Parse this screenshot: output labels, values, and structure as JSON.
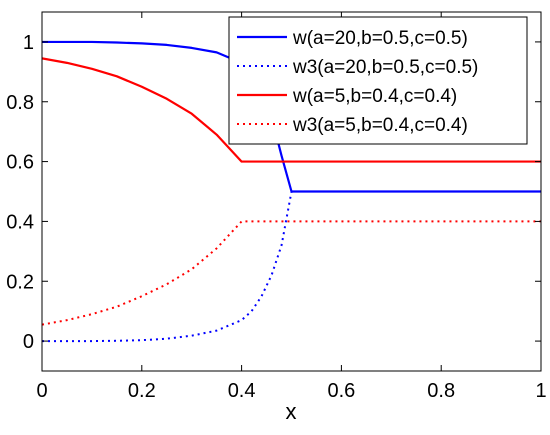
{
  "chart_data": {
    "type": "line",
    "title": "",
    "xlabel": "x",
    "ylabel": "",
    "xlim": [
      0,
      1
    ],
    "ylim": [
      -0.1,
      1.1
    ],
    "x_ticks": [
      0,
      0.2,
      0.4,
      0.6,
      0.8,
      1
    ],
    "y_ticks": [
      0,
      0.2,
      0.4,
      0.6,
      0.8,
      1
    ],
    "x_tick_labels": [
      "0",
      "0.2",
      "0.4",
      "0.6",
      "0.8",
      "1"
    ],
    "y_tick_labels": [
      "0",
      "0.2",
      "0.4",
      "0.6",
      "0.8",
      "1"
    ],
    "grid": false,
    "legend_position": "top-right",
    "series": [
      {
        "name": "w(a=20,b=0.5,c=0.5)",
        "color": "#0000ff",
        "style": "solid",
        "x": [
          0,
          0.05,
          0.1,
          0.15,
          0.2,
          0.25,
          0.3,
          0.35,
          0.4,
          0.42,
          0.44,
          0.46,
          0.48,
          0.5,
          0.6,
          0.7,
          0.8,
          0.9,
          1.0
        ],
        "y": [
          1.0,
          1.0,
          1.0,
          0.998,
          0.995,
          0.99,
          0.98,
          0.965,
          0.93,
          0.9,
          0.85,
          0.75,
          0.62,
          0.5,
          0.5,
          0.5,
          0.5,
          0.5,
          0.5
        ]
      },
      {
        "name": "w3(a=20,b=0.5,c=0.5)",
        "color": "#0000ff",
        "style": "dotted",
        "x": [
          0,
          0.05,
          0.1,
          0.15,
          0.2,
          0.25,
          0.3,
          0.35,
          0.4,
          0.42,
          0.44,
          0.46,
          0.48,
          0.5,
          0.6,
          0.7,
          0.8,
          0.9,
          1.0
        ],
        "y": [
          0.0,
          0.0,
          0.0,
          0.001,
          0.003,
          0.008,
          0.018,
          0.035,
          0.07,
          0.1,
          0.15,
          0.22,
          0.32,
          0.5,
          0.5,
          0.5,
          0.5,
          0.5,
          0.5
        ]
      },
      {
        "name": "w(a=5,b=0.4,c=0.4)",
        "color": "#ff0000",
        "style": "solid",
        "x": [
          0,
          0.05,
          0.1,
          0.15,
          0.2,
          0.25,
          0.3,
          0.35,
          0.4,
          0.5,
          0.6,
          0.7,
          0.8,
          0.9,
          1.0
        ],
        "y": [
          0.945,
          0.93,
          0.91,
          0.885,
          0.85,
          0.81,
          0.76,
          0.69,
          0.6,
          0.6,
          0.6,
          0.6,
          0.6,
          0.6,
          0.6
        ]
      },
      {
        "name": "w3(a=5,b=0.4,c=0.4)",
        "color": "#ff0000",
        "style": "dotted",
        "x": [
          0,
          0.05,
          0.1,
          0.15,
          0.2,
          0.25,
          0.3,
          0.35,
          0.4,
          0.5,
          0.6,
          0.7,
          0.8,
          0.9,
          1.0
        ],
        "y": [
          0.055,
          0.07,
          0.09,
          0.115,
          0.15,
          0.19,
          0.24,
          0.31,
          0.4,
          0.4,
          0.4,
          0.4,
          0.4,
          0.4,
          0.4
        ]
      }
    ]
  }
}
